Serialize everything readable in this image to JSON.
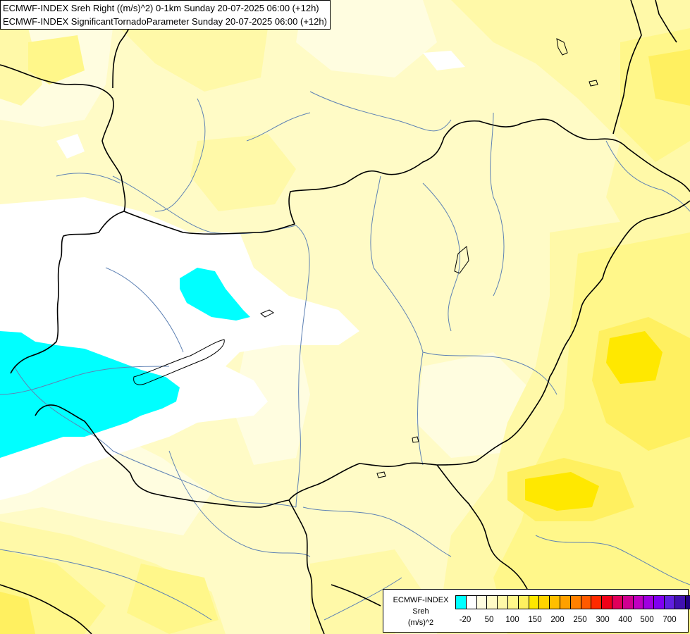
{
  "header": {
    "line1": "ECMWF-INDEX Sreh Right ((m/s)^2) 0-1km Sunday 20-07-2025 06:00 (+12h)",
    "line2": "ECMWF-INDEX SignificantTornadoParameter Sunday 20-07-2025 06:00 (+12h)"
  },
  "legend": {
    "title_line1": "ECMWF-INDEX",
    "title_line2": "Sreh",
    "title_line3": "(m/s)^2",
    "colors": [
      "#00ffff",
      "#ffffff",
      "#fffde0",
      "#fffbc6",
      "#fff9a8",
      "#fff78a",
      "#fff060",
      "#ffe800",
      "#ffd400",
      "#ffbf00",
      "#ffa000",
      "#ff8000",
      "#ff5a00",
      "#ff2a00",
      "#f00018",
      "#e0005a",
      "#d00090",
      "#c000c0",
      "#a000e0",
      "#8000f0",
      "#6020e0",
      "#4010b0",
      "#200080"
    ],
    "ticks": [
      "-20",
      "50",
      "100",
      "150",
      "200",
      "250",
      "300",
      "400",
      "500",
      "700"
    ]
  },
  "map": {
    "colors": {
      "field_base": "#fffbc6",
      "field_pale": "#fffde0",
      "field_light": "#fff9a8",
      "field_mid": "#fff78a",
      "field_strong": "#fff060",
      "field_peak": "#ffe800",
      "negative_white": "#ffffff",
      "negative_cyan": "#00ffff",
      "border": "#000000",
      "river": "#5f82b4"
    }
  }
}
